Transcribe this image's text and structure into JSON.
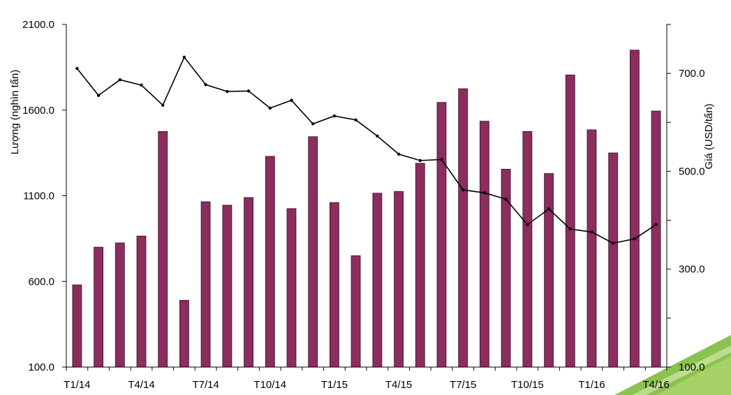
{
  "chart_data": {
    "type": "bar+line",
    "title": "",
    "categories": [
      "T1/14",
      "T2/14",
      "T3/14",
      "T4/14",
      "T5/14",
      "T6/14",
      "T7/14",
      "T8/14",
      "T9/14",
      "T10/14",
      "T11/14",
      "T12/14",
      "T1/15",
      "T2/15",
      "T3/15",
      "T4/15",
      "T5/15",
      "T6/15",
      "T7/15",
      "T8/15",
      "T9/15",
      "T10/15",
      "T11/15",
      "T12/15",
      "T1/16",
      "T2/16",
      "T3/16",
      "T4/16"
    ],
    "shown_xtick_labels": [
      "T1/14",
      "T4/14",
      "T7/14",
      "T10/14",
      "T1/15",
      "T4/15",
      "T7/15",
      "T10/15",
      "T1/16",
      "T4/16"
    ],
    "series": [
      {
        "type": "bar",
        "axis": "left",
        "values": [
          580,
          800,
          825,
          865,
          1475,
          490,
          1065,
          1045,
          1090,
          1330,
          1025,
          1445,
          1060,
          750,
          1115,
          1125,
          1290,
          1645,
          1725,
          1535,
          1255,
          1475,
          1230,
          1805,
          1485,
          1350,
          1950,
          1595
        ]
      },
      {
        "type": "line",
        "axis": "right",
        "values": [
          710,
          655,
          687,
          676,
          635,
          733,
          677,
          663,
          664,
          629,
          645,
          597,
          613,
          605,
          572,
          535,
          522,
          524,
          462,
          456,
          443,
          391,
          423,
          382,
          376,
          353,
          362,
          391
        ]
      }
    ],
    "ylabel_left": "Lượng (nghìn tấn)",
    "ylabel_right": "Giá (USD/tấn)",
    "ylim_left": [
      100,
      2100
    ],
    "ylim_right": [
      100,
      800
    ],
    "yticks_left": [
      "100.0",
      "600.0",
      "1100.0",
      "1600.0",
      "2100.0"
    ],
    "yticks_right": [
      "100.0",
      "300.0",
      "500.0",
      "700.0"
    ],
    "colors": {
      "bar": "#8b2d5f",
      "line": "#000000",
      "corner_accent": "#7dbb3c"
    },
    "grid": false,
    "legend": "none"
  }
}
